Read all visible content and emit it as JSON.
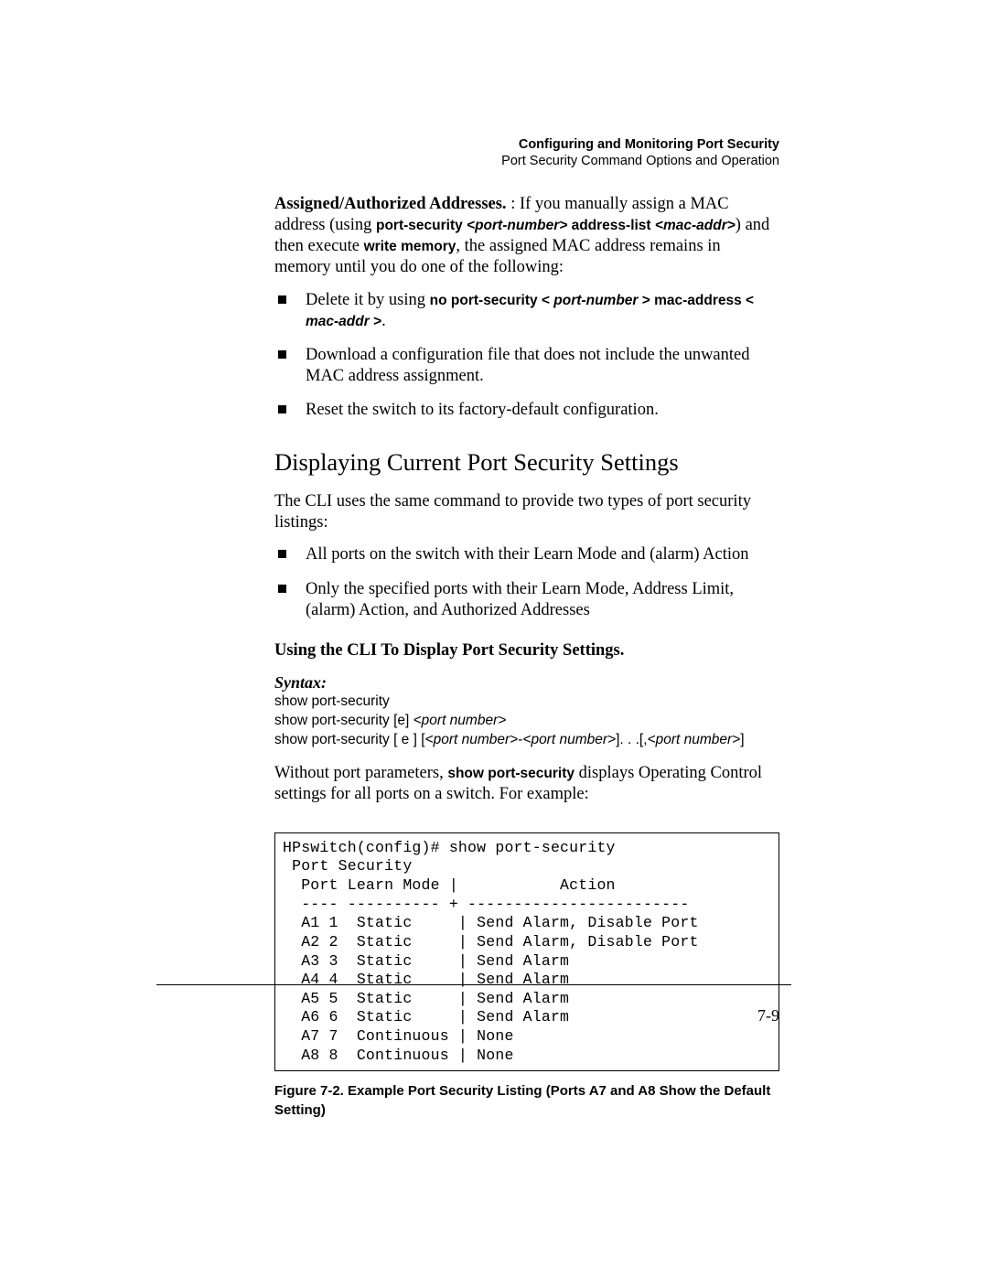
{
  "header": {
    "title": "Configuring and Monitoring Port Security",
    "subtitle": "Port Security Command Options and Operation"
  },
  "intro": {
    "lead": "Assigned/Authorized Addresses.",
    "text_1": " : If you manually assign a MAC address (using ",
    "cmd_1a": "port-security",
    "cmd_1b": " <port-number>",
    "cmd_1c": " address-list",
    "cmd_1d": " <mac-addr>",
    "text_2": ") and then execute ",
    "cmd_2": "write memory",
    "text_3": ", the assigned MAC address remains in memory until you do one of the following:"
  },
  "bullets1": [
    {
      "pre": "Delete it by using ",
      "cmd_a": "no port-security <",
      "cmd_b": " port-number",
      "cmd_c": " > mac-address <",
      "cmd_d": " mac-addr",
      "cmd_e": " >",
      "post": "."
    },
    {
      "plain": "Download a configuration file that does not include the unwanted MAC address assignment."
    },
    {
      "plain": "Reset the switch to its factory-default configuration."
    }
  ],
  "section_heading": "Displaying Current Port Security Settings",
  "section_para": "The CLI uses the same command to provide two types of port security listings:",
  "bullets2": [
    {
      "plain": "All ports on the switch with their Learn Mode and (alarm) Action"
    },
    {
      "plain": "Only the specified ports with their Learn Mode, Address Limit, (alarm) Action, and Authorized Addresses"
    }
  ],
  "sub_heading": "Using the CLI To Display Port Security Settings.",
  "syntax": {
    "label": "Syntax:",
    "line1": "show port-security",
    "line2_a": "show port-security [e] ",
    "line2_b": "<port number>",
    "line3_a": "show port-security [ e ] [",
    "line3_b": "<port number>",
    "line3_c": "-",
    "line3_d": "<port number>",
    "line3_e": "]. . .[,",
    "line3_f": "<port number>",
    "line3_g": "]"
  },
  "para2_a": "Without port parameters, ",
  "para2_b": "show port-security",
  "para2_c": " displays Operating Control settings for all ports on a switch. For example:",
  "cli_output": "HPswitch(config)# show port-security\n Port Security\n  Port Learn Mode |           Action\n  ---- ---------- + ------------------------\n  A1 1  Static     | Send Alarm, Disable Port\n  A2 2  Static     | Send Alarm, Disable Port\n  A3 3  Static     | Send Alarm\n  A4 4  Static     | Send Alarm\n  A5 5  Static     | Send Alarm\n  A6 6  Static     | Send Alarm\n  A7 7  Continuous | None\n  A8 8  Continuous | None",
  "figure_caption": "Figure 7-2. Example Port Security Listing (Ports A7 and A8 Show the Default Setting)",
  "page_number": "7-9"
}
